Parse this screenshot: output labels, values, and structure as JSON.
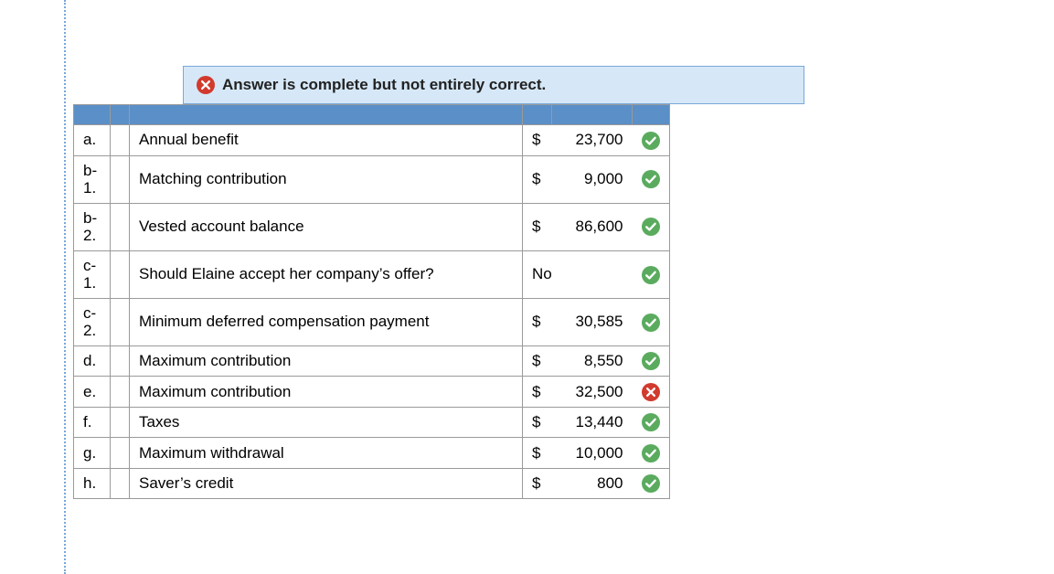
{
  "banner": {
    "text": "Answer is complete but not entirely correct.",
    "icon_bg": "#d23a2e",
    "icon_fg": "#ffffff",
    "bg": "#d6e8f7",
    "border": "#7aa7d9"
  },
  "colors": {
    "header_row_bg": "#5b8fc7",
    "cell_border": "#9a9a9a",
    "correct_bg": "#5aab5e",
    "correct_fg": "#ffffff",
    "incorrect_bg": "#d23a2e",
    "incorrect_fg": "#ffffff",
    "dotted_rule": "#7aa7d9"
  },
  "rows": [
    {
      "letter": "a.",
      "desc": "Annual benefit",
      "prefix": "$",
      "value": "23,700",
      "status": "correct",
      "twoLine": false
    },
    {
      "letter": "b-\n1.",
      "desc": "Matching contribution",
      "prefix": "$",
      "value": "9,000",
      "status": "correct",
      "twoLine": true
    },
    {
      "letter": "b-\n2.",
      "desc": "Vested account balance",
      "prefix": "$",
      "value": "86,600",
      "status": "correct",
      "twoLine": true
    },
    {
      "letter": "c-\n1.",
      "desc": "Should Elaine accept her company’s offer?",
      "prefix": "",
      "value": "No",
      "status": "correct",
      "twoLine": true,
      "textAnswer": true
    },
    {
      "letter": "c-\n2.",
      "desc": "Minimum deferred compensation payment",
      "prefix": "$",
      "value": "30,585",
      "status": "correct",
      "twoLine": true
    },
    {
      "letter": "d.",
      "desc": "Maximum contribution",
      "prefix": "$",
      "value": "8,550",
      "status": "correct",
      "twoLine": false
    },
    {
      "letter": "e.",
      "desc": "Maximum contribution",
      "prefix": "$",
      "value": "32,500",
      "status": "incorrect",
      "twoLine": false
    },
    {
      "letter": "f.",
      "desc": "Taxes",
      "prefix": "$",
      "value": "13,440",
      "status": "correct",
      "twoLine": false
    },
    {
      "letter": "g.",
      "desc": "Maximum withdrawal",
      "prefix": "$",
      "value": "10,000",
      "status": "correct",
      "twoLine": false
    },
    {
      "letter": "h.",
      "desc": "Saver’s credit",
      "prefix": "$",
      "value": "800",
      "status": "correct",
      "twoLine": false
    }
  ]
}
